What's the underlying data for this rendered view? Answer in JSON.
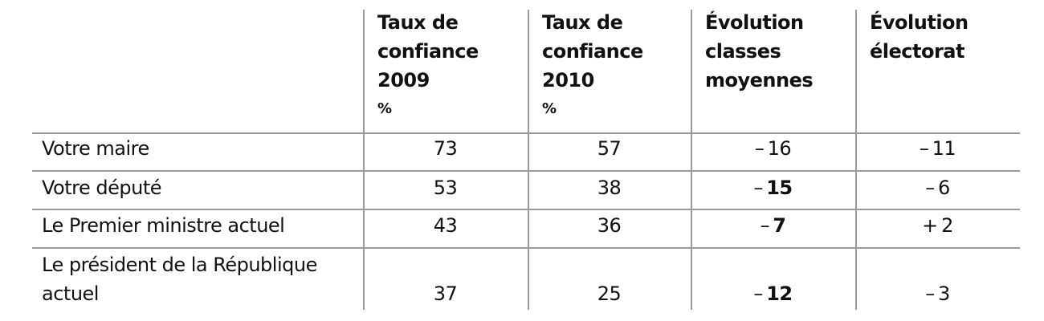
{
  "table": {
    "header": [
      [
        "Taux de",
        "confiance",
        "2009",
        "%"
      ],
      [
        "Taux de",
        "confiance",
        "2010",
        "%"
      ],
      [
        "Évolution",
        "classes",
        "moyennes"
      ],
      [
        "Évolution",
        "électorat"
      ]
    ],
    "rows": [
      {
        "label": [
          "Votre maire"
        ],
        "cells": [
          73,
          57,
          {
            "sign": "–",
            "value": 16,
            "bold": false
          },
          {
            "sign": "–",
            "value": 11,
            "bold": false
          }
        ]
      },
      {
        "label": [
          "Votre député"
        ],
        "cells": [
          53,
          38,
          {
            "sign": "–",
            "value": 15,
            "bold": true
          },
          {
            "sign": "–",
            "value": 6,
            "bold": false
          }
        ]
      },
      {
        "label": [
          "Le Premier ministre actuel"
        ],
        "cells": [
          43,
          36,
          {
            "sign": "–",
            "value": 7,
            "bold": true
          },
          {
            "sign": "+",
            "value": 2,
            "bold": false
          }
        ]
      },
      {
        "label": [
          "Le président de la République",
          "actuel"
        ],
        "cells": [
          37,
          25,
          {
            "sign": "–",
            "value": 12,
            "bold": true
          },
          {
            "sign": "–",
            "value": 3,
            "bold": false
          }
        ]
      }
    ]
  }
}
